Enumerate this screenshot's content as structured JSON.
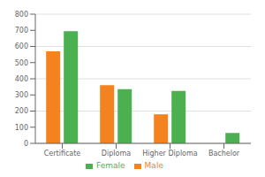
{
  "chart_data": {
    "type": "bar",
    "categories": [
      "Certificate",
      "Diploma",
      "Higher Diploma",
      "Bachelor"
    ],
    "series": [
      {
        "name": "Male",
        "color": "#F4821F",
        "values": [
          570,
          360,
          180,
          0
        ]
      },
      {
        "name": "Female",
        "color": "#4CAF50",
        "values": [
          695,
          335,
          325,
          65
        ]
      }
    ],
    "ylim": [
      0,
      800
    ],
    "yticks": [
      0,
      100,
      200,
      300,
      400,
      500,
      600,
      700,
      800
    ],
    "grid": true,
    "legend": "bottom"
  }
}
